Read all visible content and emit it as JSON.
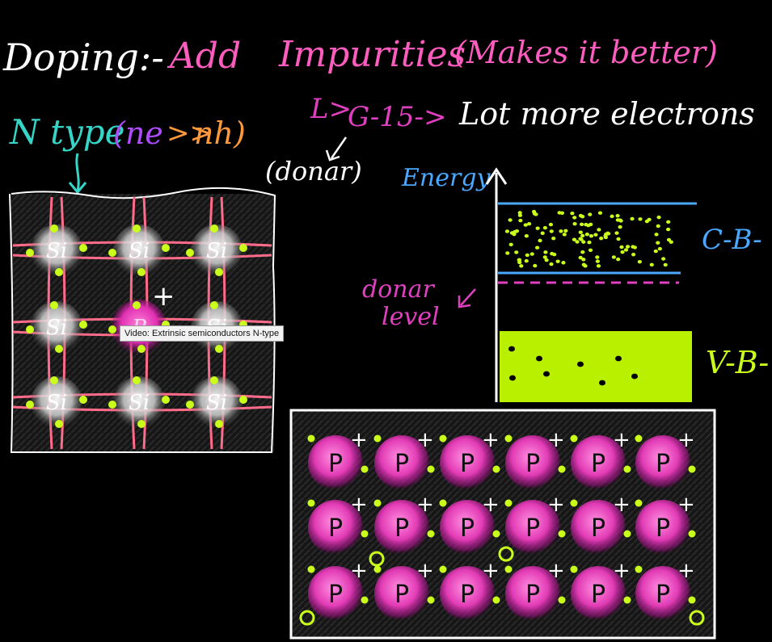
{
  "title": {
    "doping": "Doping:-",
    "add": "Add",
    "impurities": "Impurities",
    "makes_better": "(Makes it better)"
  },
  "group": {
    "arrow": "L>",
    "g15": "G-15->",
    "lot_more": "Lot more electrons"
  },
  "ntype": {
    "label": "N type",
    "relation_open": "(ne",
    "relation_gg": ">>",
    "relation_nh": "nh)"
  },
  "donar": "(donar)",
  "band": {
    "energy": "Energy",
    "cb": "C-B-",
    "vb": "V-B-",
    "donar_level_line1": "donar",
    "donar_level_line2": "level"
  },
  "lattice": {
    "si_label": "Si",
    "p_label": "P",
    "plus": "+"
  },
  "grid": {
    "atom_label": "P",
    "plus": "+"
  },
  "tooltip": "Video: Extrinsic semiconductors N-type",
  "colors": {
    "pink": "#ff5cbf",
    "magenta": "#e040c0",
    "cyan": "#35d6c8",
    "blue": "#4aa8ff",
    "lime": "#c9ff1a",
    "orange": "#ff9a3c",
    "purple": "#b04cff",
    "white": "#ffffff"
  }
}
